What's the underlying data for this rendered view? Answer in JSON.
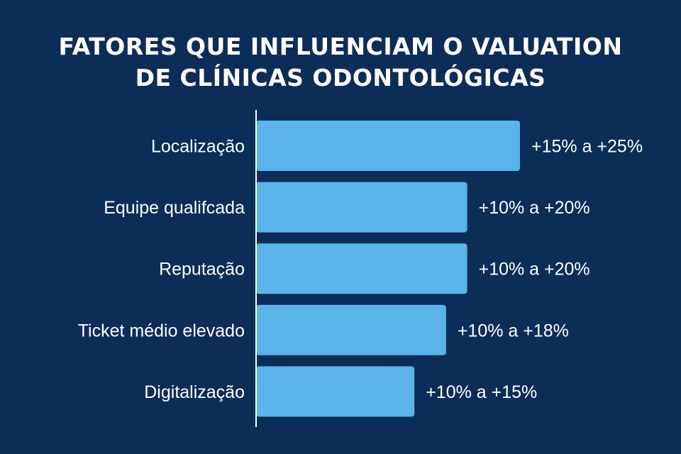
{
  "colors": {
    "background": "#0c2d57",
    "bar": "#5ab4ea",
    "text": "#ffffff",
    "axis": "#ffffff"
  },
  "chart_data": {
    "type": "bar",
    "orientation": "horizontal",
    "title_lines": [
      "FATORES QUE INFLUENCIAM O VALUATION",
      "DE CLÍNICAS ODONTOLÓGICAS"
    ],
    "categories": [
      "Localização",
      "Equipe qualifcada",
      "Reputação",
      "Ticket médio elevado",
      "Digitalização"
    ],
    "ranges": [
      [
        15,
        25
      ],
      [
        10,
        20
      ],
      [
        10,
        20
      ],
      [
        10,
        18
      ],
      [
        10,
        15
      ]
    ],
    "values": [
      25,
      20,
      20,
      18,
      15
    ],
    "value_labels": [
      "+15% a +25%",
      "+10% a +20%",
      "+10% a +20%",
      "+10% a +18%",
      "+10% a +15%"
    ],
    "xlim": [
      0,
      25
    ],
    "grid": false,
    "legend": "none"
  }
}
